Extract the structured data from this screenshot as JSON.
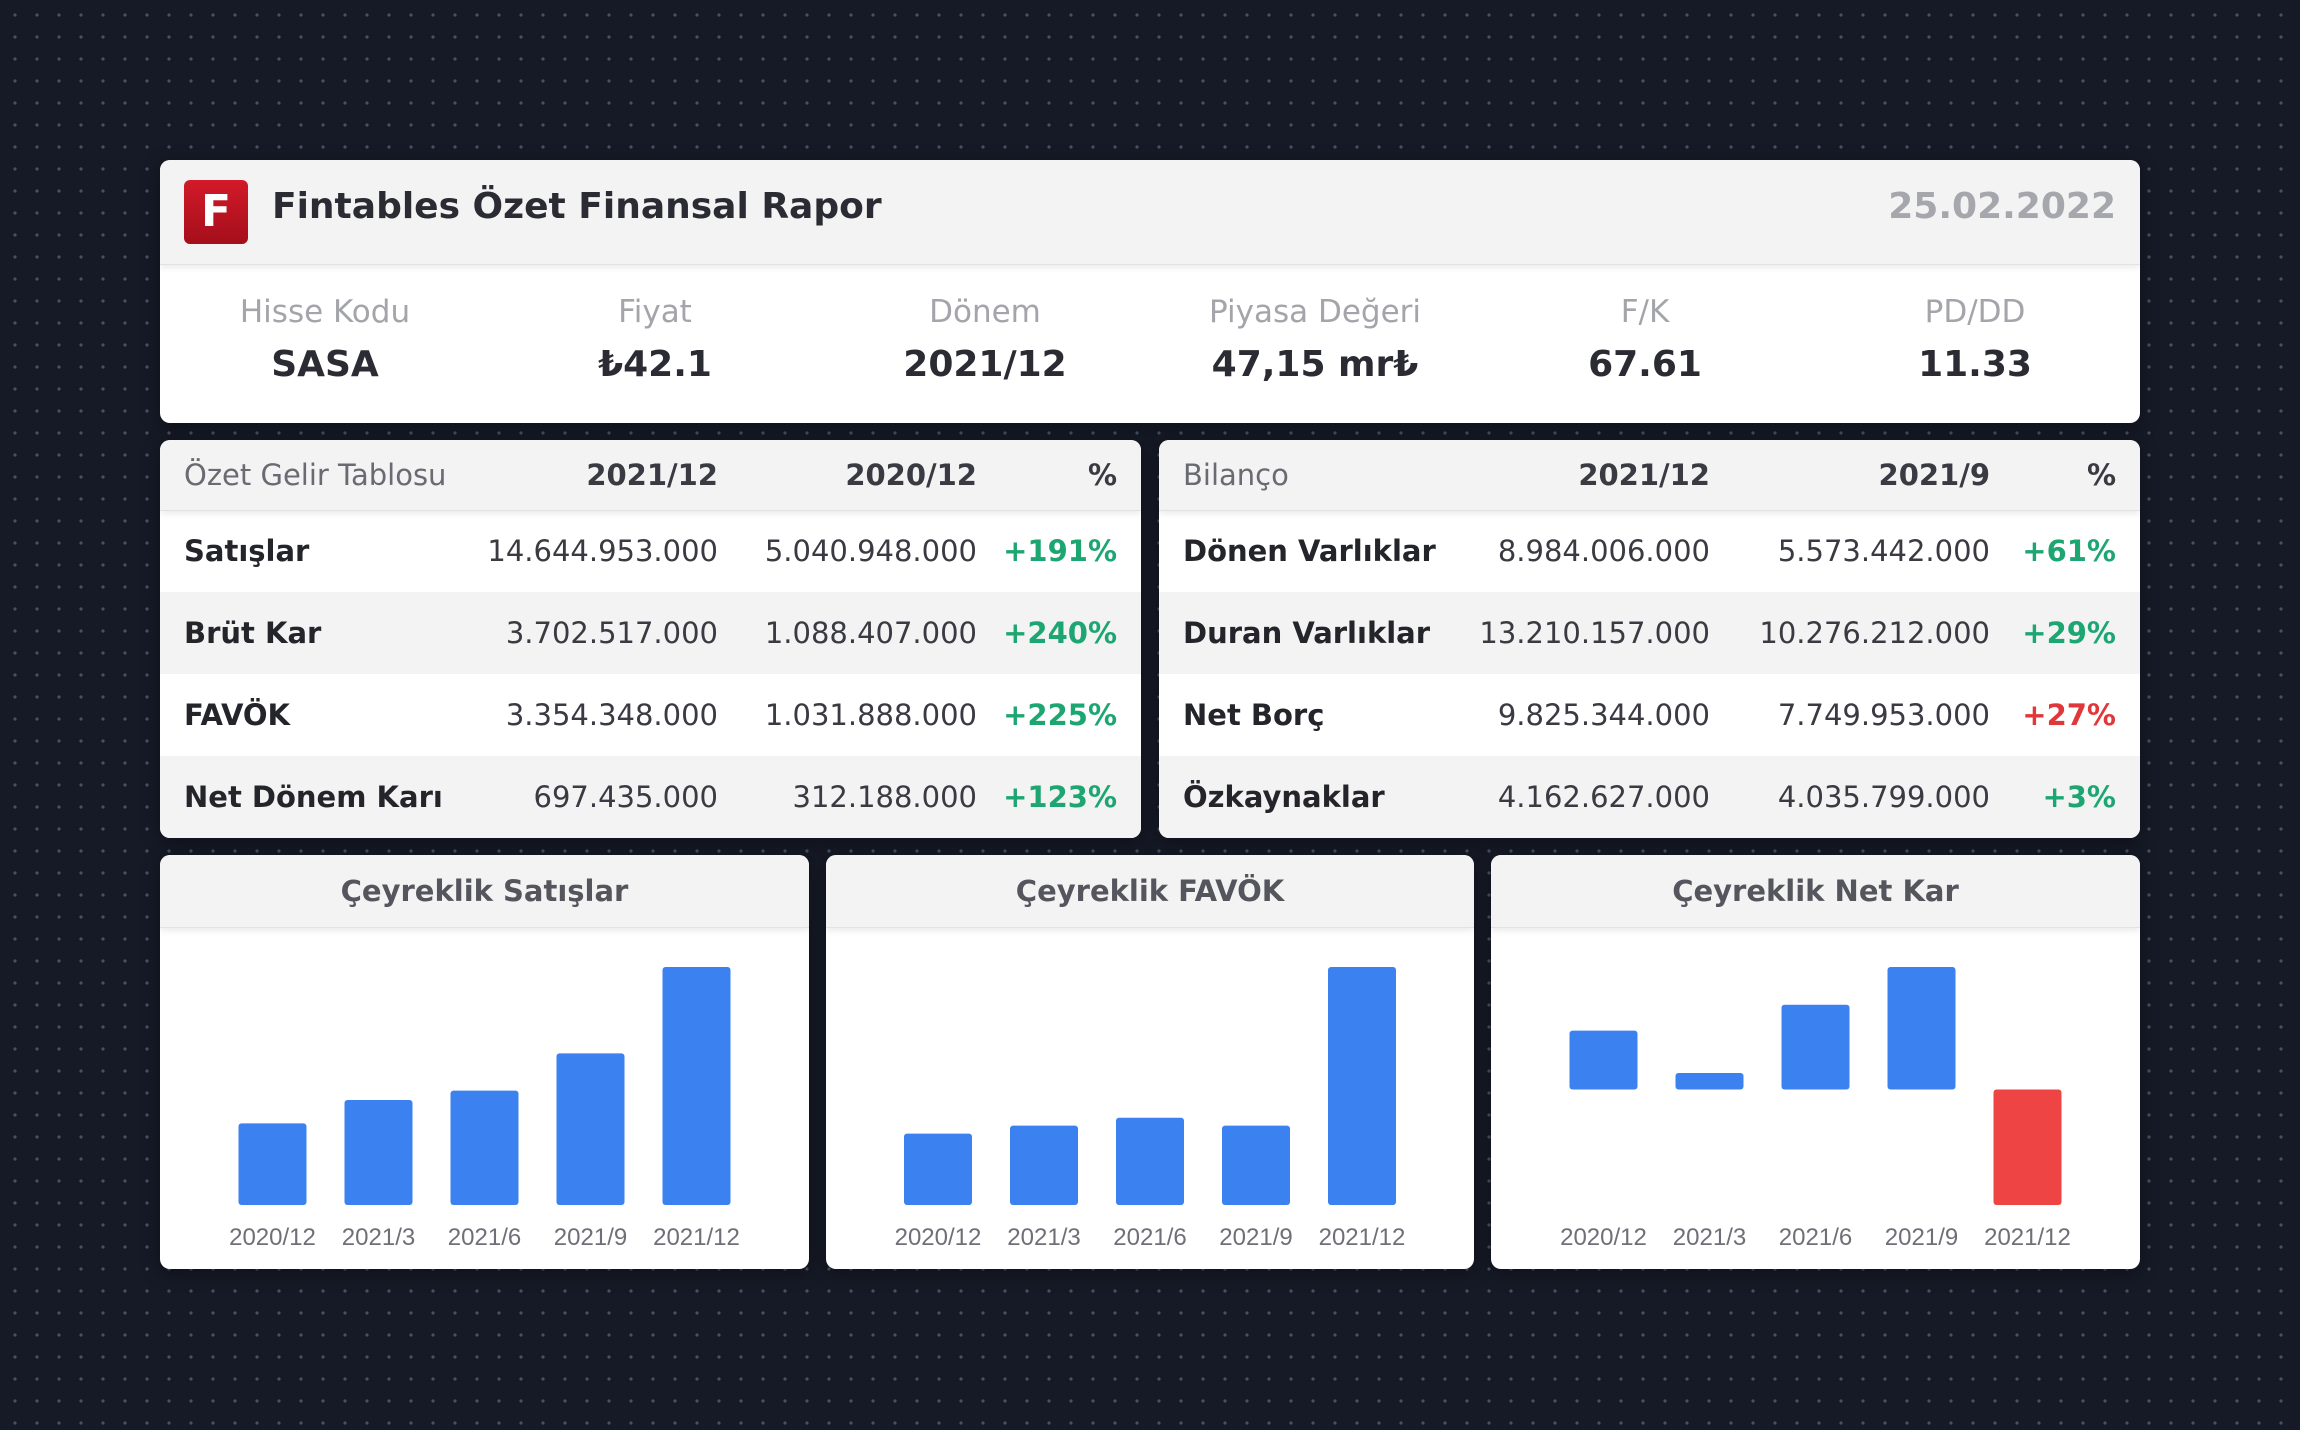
{
  "header": {
    "logo_letter": "F",
    "title": "Fintables Özet Finansal Rapor",
    "date": "25.02.2022",
    "metrics": [
      {
        "label": "Hisse Kodu",
        "value": "SASA"
      },
      {
        "label": "Fiyat",
        "value": "₺42.1"
      },
      {
        "label": "Dönem",
        "value": "2021/12"
      },
      {
        "label": "Piyasa Değeri",
        "value": "47,15 mr₺"
      },
      {
        "label": "F/K",
        "value": "67.61"
      },
      {
        "label": "PD/DD",
        "value": "11.33"
      }
    ]
  },
  "income": {
    "columns": [
      "Özet Gelir Tablosu",
      "2021/12",
      "2020/12",
      "%"
    ],
    "rows": [
      {
        "name": "Satışlar",
        "current": "14.644.953.000",
        "previous": "5.040.948.000",
        "change": "+191%"
      },
      {
        "name": "Brüt Kar",
        "current": "3.702.517.000",
        "previous": "1.088.407.000",
        "change": "+240%"
      },
      {
        "name": "FAVÖK",
        "current": "3.354.348.000",
        "previous": "1.031.888.000",
        "change": "+225%"
      },
      {
        "name": "Net Dönem Karı",
        "current": "697.435.000",
        "previous": "312.188.000",
        "change": "+123%"
      }
    ]
  },
  "balance": {
    "columns": [
      "Bilanço",
      "2021/12",
      "2021/9",
      "%"
    ],
    "rows": [
      {
        "name": "Dönen Varlıklar",
        "current": "8.984.006.000",
        "previous": "5.573.442.000",
        "change": "+61%"
      },
      {
        "name": "Duran Varlıklar",
        "current": "13.210.157.000",
        "previous": "10.276.212.000",
        "change": "+29%"
      },
      {
        "name": "Net Borç",
        "current": "9.825.344.000",
        "previous": "7.749.953.000",
        "change": "+27%"
      },
      {
        "name": "Özkaynaklar",
        "current": "4.162.627.000",
        "previous": "4.035.799.000",
        "change": "+3%"
      }
    ]
  },
  "colors": {
    "positive": "#1ea672",
    "negative": "#e0383a",
    "bar_positive": "#3b82f0",
    "bar_negative": "#ef4444"
  },
  "chart_data": [
    {
      "type": "bar",
      "title": "Çeyreklik Satışlar",
      "categories": [
        "2020/12",
        "2021/3",
        "2021/6",
        "2021/9",
        "2021/12"
      ],
      "values": [
        1.75,
        2.25,
        2.45,
        3.25,
        5.1
      ],
      "ylim": [
        0,
        5.1
      ]
    },
    {
      "type": "bar",
      "title": "Çeyreklik FAVÖK",
      "categories": [
        "2020/12",
        "2021/3",
        "2021/6",
        "2021/9",
        "2021/12"
      ],
      "values": [
        0.45,
        0.5,
        0.55,
        0.5,
        1.5
      ],
      "ylim": [
        0,
        1.5
      ]
    },
    {
      "type": "bar",
      "title": "Çeyreklik Net Kar",
      "categories": [
        "2020/12",
        "2021/3",
        "2021/6",
        "2021/9",
        "2021/12"
      ],
      "values": [
        0.25,
        0.07,
        0.36,
        0.52,
        -0.49
      ],
      "ylim": [
        -0.49,
        0.52
      ]
    }
  ]
}
